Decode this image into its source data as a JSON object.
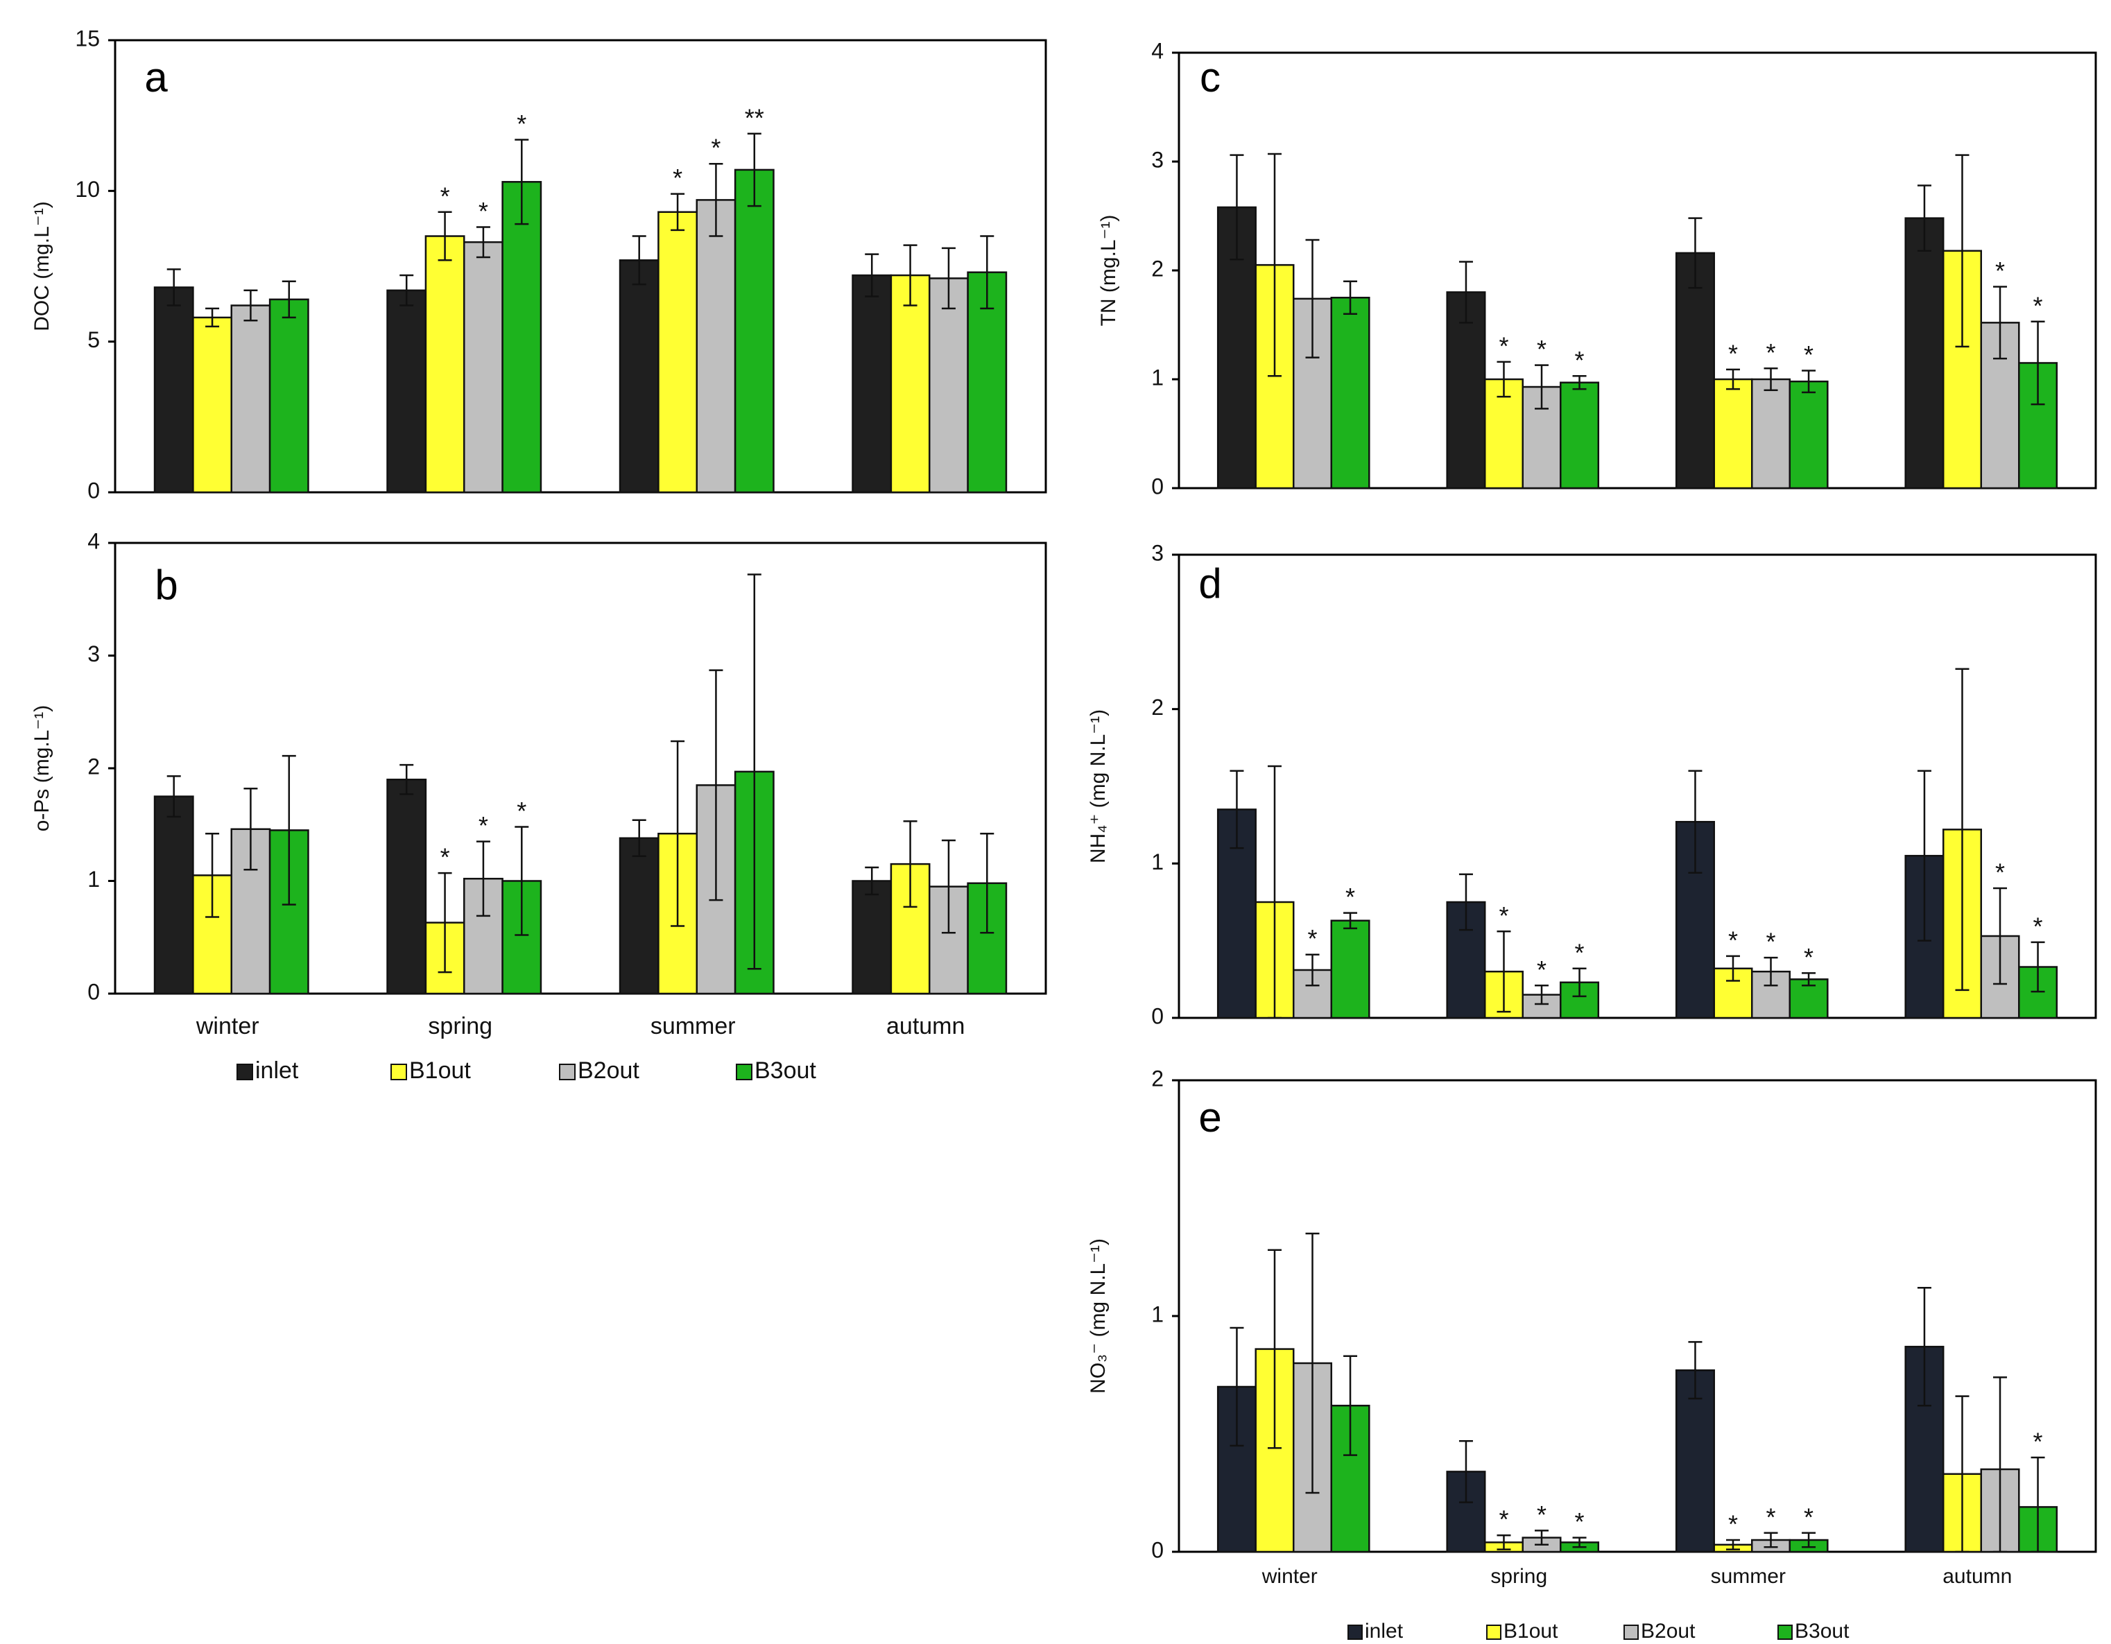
{
  "chart_data": [
    {
      "id": "a",
      "panel_label": "a",
      "type": "bar",
      "ylabel": "DOC (mg.L⁻¹)",
      "ylim": [
        0,
        15
      ],
      "yticks": [
        0,
        5,
        10,
        15
      ],
      "yticklabels": [
        "0",
        "5",
        "10",
        "15"
      ],
      "categories": [
        "winter",
        "spring",
        "summer",
        "autumn"
      ],
      "show_xlabels": false,
      "series": [
        {
          "name": "inlet",
          "values": [
            6.8,
            6.7,
            7.7,
            7.2
          ],
          "errors": [
            0.6,
            0.5,
            0.8,
            0.7
          ],
          "marks": [
            "",
            "",
            "",
            ""
          ]
        },
        {
          "name": "B1out",
          "values": [
            5.8,
            8.5,
            9.3,
            7.2
          ],
          "errors": [
            0.3,
            0.8,
            0.6,
            1.0
          ],
          "marks": [
            "",
            "*",
            "*",
            ""
          ]
        },
        {
          "name": "B2out",
          "values": [
            6.2,
            8.3,
            9.7,
            7.1
          ],
          "errors": [
            0.5,
            0.5,
            1.2,
            1.0
          ],
          "marks": [
            "",
            "*",
            "*",
            ""
          ]
        },
        {
          "name": "B3out",
          "values": [
            6.4,
            10.3,
            10.7,
            7.3
          ],
          "errors": [
            0.6,
            1.4,
            1.2,
            1.2
          ],
          "marks": [
            "",
            "*",
            "**",
            ""
          ]
        }
      ]
    },
    {
      "id": "b",
      "panel_label": "b",
      "type": "bar",
      "ylabel": "o-Ps (mg.L⁻¹)",
      "ylim": [
        0,
        4
      ],
      "yticks": [
        0,
        1,
        2,
        3,
        4
      ],
      "yticklabels": [
        "0",
        "1",
        "2",
        "3",
        "4"
      ],
      "categories": [
        "winter",
        "spring",
        "summer",
        "autumn"
      ],
      "show_xlabels": true,
      "series": [
        {
          "name": "inlet",
          "values": [
            1.75,
            1.9,
            1.38,
            1.0
          ],
          "errors": [
            0.18,
            0.13,
            0.16,
            0.12
          ],
          "marks": [
            "",
            "",
            "",
            ""
          ]
        },
        {
          "name": "B1out",
          "values": [
            1.05,
            0.63,
            1.42,
            1.15
          ],
          "errors": [
            0.37,
            0.44,
            0.82,
            0.38
          ],
          "marks": [
            "",
            "*",
            "",
            ""
          ]
        },
        {
          "name": "B2out",
          "values": [
            1.46,
            1.02,
            1.85,
            0.95
          ],
          "errors": [
            0.36,
            0.33,
            1.02,
            0.41
          ],
          "marks": [
            "",
            "*",
            "",
            ""
          ]
        },
        {
          "name": "B3out",
          "values": [
            1.45,
            1.0,
            1.97,
            0.98
          ],
          "errors": [
            0.66,
            0.48,
            1.75,
            0.44
          ],
          "marks": [
            "",
            "*",
            "",
            ""
          ]
        }
      ],
      "legend": [
        "inlet",
        "B1out",
        "B2out",
        "B3out"
      ]
    },
    {
      "id": "c",
      "panel_label": "c",
      "type": "bar",
      "ylabel": "TN (mg.L⁻¹)",
      "ylim": [
        0,
        4
      ],
      "yticks": [
        0,
        1,
        2,
        3,
        4
      ],
      "yticklabels": [
        "0",
        "1",
        "2",
        "3",
        "4"
      ],
      "categories": [
        "winter",
        "spring",
        "summer",
        "autumn"
      ],
      "show_xlabels": false,
      "series": [
        {
          "name": "inlet",
          "values": [
            2.58,
            1.8,
            2.16,
            2.48
          ],
          "errors": [
            0.48,
            0.28,
            0.32,
            0.3
          ],
          "marks": [
            "",
            "",
            "",
            ""
          ]
        },
        {
          "name": "B1out",
          "values": [
            2.05,
            1.0,
            1.0,
            2.18
          ],
          "errors": [
            1.02,
            0.16,
            0.09,
            0.88
          ],
          "marks": [
            "",
            "*",
            "*",
            ""
          ]
        },
        {
          "name": "B2out",
          "values": [
            1.74,
            0.93,
            1.0,
            1.52
          ],
          "errors": [
            0.54,
            0.2,
            0.1,
            0.33
          ],
          "marks": [
            "",
            "*",
            "*",
            "*"
          ]
        },
        {
          "name": "B3out",
          "values": [
            1.75,
            0.97,
            0.98,
            1.15
          ],
          "errors": [
            0.15,
            0.06,
            0.1,
            0.38
          ],
          "marks": [
            "",
            "*",
            "*",
            "*"
          ]
        }
      ]
    },
    {
      "id": "d",
      "panel_label": "d",
      "type": "bar",
      "ylabel": "NH₄⁺ (mg N.L⁻¹)",
      "ylim": [
        0,
        3
      ],
      "yticks": [
        0,
        1,
        2,
        3
      ],
      "yticklabels": [
        "0",
        "1",
        "2",
        "3"
      ],
      "categories": [
        "winter",
        "spring",
        "summer",
        "autumn"
      ],
      "show_xlabels": false,
      "series": [
        {
          "name": "inlet",
          "values": [
            1.35,
            0.75,
            1.27,
            1.05
          ],
          "errors": [
            0.25,
            0.18,
            0.33,
            0.55
          ],
          "marks": [
            "",
            "",
            "",
            ""
          ]
        },
        {
          "name": "B1out",
          "values": [
            0.75,
            0.3,
            0.32,
            1.22
          ],
          "errors": [
            0.88,
            0.26,
            0.08,
            1.04
          ],
          "marks": [
            "",
            "*",
            "*",
            ""
          ]
        },
        {
          "name": "B2out",
          "values": [
            0.31,
            0.15,
            0.3,
            0.53
          ],
          "errors": [
            0.1,
            0.06,
            0.09,
            0.31
          ],
          "marks": [
            "*",
            "*",
            "*",
            "*"
          ]
        },
        {
          "name": "B3out",
          "values": [
            0.63,
            0.23,
            0.25,
            0.33
          ],
          "errors": [
            0.05,
            0.09,
            0.04,
            0.16
          ],
          "marks": [
            "*",
            "*",
            "*",
            "*"
          ]
        }
      ]
    },
    {
      "id": "e",
      "panel_label": "e",
      "type": "bar",
      "ylabel": "NO₃⁻ (mg N.L⁻¹)",
      "ylim": [
        0,
        2
      ],
      "yticks": [
        0,
        1,
        2
      ],
      "yticklabels": [
        "0",
        "1",
        "2"
      ],
      "categories": [
        "winter",
        "spring",
        "summer",
        "autumn"
      ],
      "show_xlabels": true,
      "series": [
        {
          "name": "inlet",
          "values": [
            0.7,
            0.34,
            0.77,
            0.87
          ],
          "errors": [
            0.25,
            0.13,
            0.12,
            0.25
          ],
          "marks": [
            "",
            "",
            "",
            ""
          ]
        },
        {
          "name": "B1out",
          "values": [
            0.86,
            0.04,
            0.03,
            0.33
          ],
          "errors": [
            0.42,
            0.03,
            0.02,
            0.33
          ],
          "marks": [
            "",
            "*",
            "*",
            ""
          ]
        },
        {
          "name": "B2out",
          "values": [
            0.8,
            0.06,
            0.05,
            0.35
          ],
          "errors": [
            0.55,
            0.03,
            0.03,
            0.39
          ],
          "marks": [
            "",
            "*",
            "*",
            ""
          ]
        },
        {
          "name": "B3out",
          "values": [
            0.62,
            0.04,
            0.05,
            0.19
          ],
          "errors": [
            0.21,
            0.02,
            0.03,
            0.21
          ],
          "marks": [
            "",
            "*",
            "*",
            "*"
          ]
        }
      ],
      "legend": [
        "inlet",
        "B1out",
        "B2out",
        "B3out"
      ]
    }
  ],
  "colors": {
    "inlet": "#1f1f1f",
    "inlet_dark_navy": "#1d2330",
    "B1out": "#ffff33",
    "B2out": "#bfbfbf",
    "B3out": "#1db31d"
  },
  "legend_items": [
    "inlet",
    "B1out",
    "B2out",
    "B3out"
  ]
}
